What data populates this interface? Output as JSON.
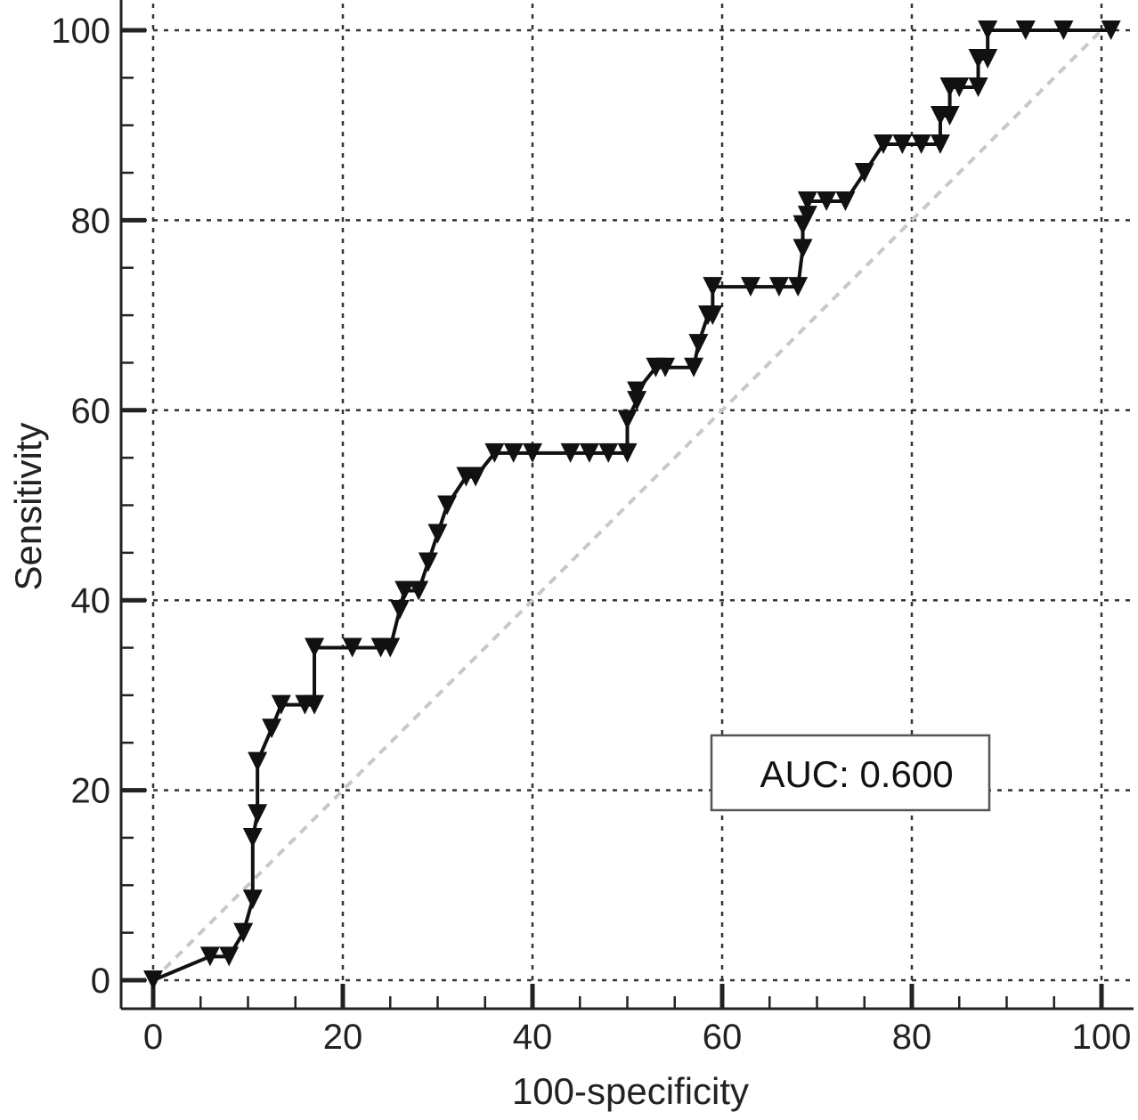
{
  "chart_data": {
    "type": "line",
    "xlabel": "100-specificity",
    "ylabel": "Sensitivity",
    "xlim": [
      0,
      100
    ],
    "ylim": [
      0,
      100
    ],
    "x_ticks": [
      "0",
      "20",
      "40",
      "60",
      "80",
      "100"
    ],
    "y_ticks": [
      "0",
      "20",
      "40",
      "60",
      "80",
      "100"
    ],
    "grid": true,
    "annotation": "AUC: 0.600",
    "annotation_position": "lower-right",
    "series": [
      {
        "line_color": "#111111",
        "marker": "triangle-down",
        "x": [
          0,
          6,
          8,
          9.5,
          10.5,
          10.5,
          11,
          11,
          12.5,
          13.5,
          16,
          17,
          17,
          21,
          24,
          25,
          26,
          26.5,
          28,
          29,
          30,
          31,
          33,
          34,
          36,
          38,
          40,
          44,
          46,
          48,
          50,
          50,
          51,
          51,
          53,
          54,
          57,
          57.5,
          58.5,
          59,
          59,
          63,
          66,
          68,
          68.5,
          68.5,
          69,
          69,
          71,
          73,
          75,
          77,
          79,
          81,
          83,
          83,
          84,
          84,
          85,
          87,
          87,
          88,
          88,
          92,
          96,
          101
        ],
        "y": [
          0,
          2.5,
          2.5,
          5,
          8.5,
          15,
          17.5,
          23,
          26.5,
          29,
          29,
          29,
          35,
          35,
          35,
          35,
          39,
          41,
          41,
          44,
          47,
          50,
          53,
          53,
          55.5,
          55.5,
          55.5,
          55.5,
          55.5,
          55.5,
          55.5,
          59,
          61,
          62,
          64.5,
          64.5,
          64.5,
          67,
          70,
          70,
          73,
          73,
          73,
          73,
          77,
          79.5,
          80.5,
          82,
          82,
          82,
          85,
          88,
          88,
          88,
          88,
          91,
          91,
          94,
          94,
          94,
          97,
          97,
          100,
          100,
          100,
          100
        ]
      }
    ],
    "reference_line": {
      "x": [
        0,
        100
      ],
      "y": [
        0,
        100
      ],
      "color": "#c8c8c8",
      "style": "dashed"
    }
  }
}
